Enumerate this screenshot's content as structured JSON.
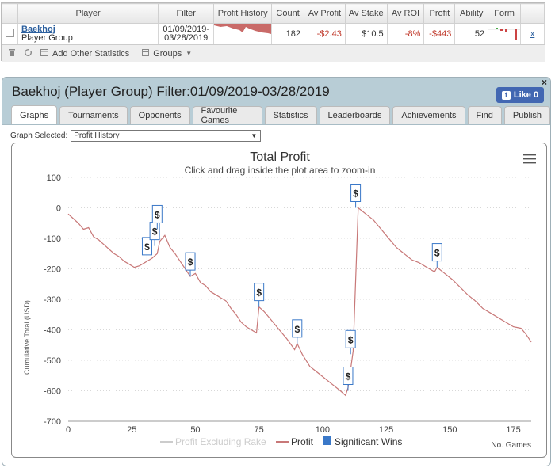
{
  "table": {
    "headers": [
      "Player",
      "Filter",
      "Profit History",
      "Count",
      "Av Profit",
      "Av Stake",
      "Av ROI",
      "Profit",
      "Ability",
      "Form"
    ],
    "row": {
      "player_name": "Baekhoj",
      "player_sub": "Player Group",
      "filter_line1": "01/09/2019-",
      "filter_line2": "03/28/2019",
      "count": "182",
      "av_profit": "-$2.43",
      "av_stake": "$10.5",
      "av_roi": "-8%",
      "profit": "-$443",
      "ability": "52",
      "remove": "x"
    }
  },
  "toolbar": {
    "add_stats": "Add Other Statistics",
    "groups": "Groups"
  },
  "panel": {
    "title": "Baekhoj (Player Group) Filter:01/09/2019-03/28/2019",
    "close": "×",
    "like_label": "Like 0",
    "tabs": [
      "Graphs",
      "Tournaments",
      "Opponents",
      "Favourite Games",
      "Statistics",
      "Leaderboards",
      "Achievements",
      "Find",
      "Publish"
    ],
    "graph_selected_label": "Graph Selected:",
    "graph_selected_value": "Profit History"
  },
  "chart_data": {
    "type": "line",
    "title": "Total Profit",
    "subtitle": "Click and drag inside the plot area to zoom-in",
    "ylabel": "Cumulative Total (USD)",
    "xlabel": "No. Games",
    "xlim": [
      0,
      182
    ],
    "ylim": [
      -700,
      100
    ],
    "xticks": [
      0,
      25,
      50,
      75,
      100,
      125,
      150,
      175
    ],
    "yticks": [
      100,
      0,
      -100,
      -200,
      -300,
      -400,
      -500,
      -600,
      -700
    ],
    "grid": "horizontal dotted",
    "legend": [
      "Profit Excluding Rake",
      "Profit",
      "Significant Wins"
    ],
    "legend_placement": "bottom",
    "colors": {
      "profit": "#c87878",
      "excl_rake": "#cccccc",
      "flag": "#3a78c8"
    },
    "series": [
      {
        "name": "Profit",
        "x": [
          0,
          2,
          4,
          6,
          8,
          10,
          12,
          14,
          16,
          18,
          20,
          22,
          24,
          26,
          28,
          30,
          31,
          33,
          35,
          36,
          38,
          40,
          42,
          44,
          46,
          48,
          50,
          52,
          54,
          56,
          58,
          60,
          62,
          64,
          66,
          68,
          70,
          72,
          74,
          75,
          77,
          80,
          83,
          86,
          89,
          90,
          92,
          95,
          98,
          101,
          104,
          107,
          109,
          110,
          112,
          114,
          117,
          120,
          123,
          126,
          129,
          132,
          135,
          138,
          141,
          144,
          145,
          148,
          151,
          154,
          157,
          160,
          163,
          166,
          169,
          172,
          175,
          178,
          180,
          182
        ],
        "values": [
          -20,
          -35,
          -50,
          -70,
          -65,
          -95,
          -105,
          -120,
          -135,
          -150,
          -160,
          -175,
          -185,
          -195,
          -190,
          -180,
          -175,
          -165,
          -150,
          -110,
          -90,
          -130,
          -150,
          -175,
          -200,
          -225,
          -215,
          -245,
          -255,
          -275,
          -285,
          -295,
          -305,
          -330,
          -350,
          -375,
          -390,
          -400,
          -410,
          -325,
          -340,
          -370,
          -400,
          -430,
          -465,
          -445,
          -480,
          -520,
          -540,
          -560,
          -580,
          -600,
          -615,
          -590,
          -470,
          0,
          -20,
          -40,
          -70,
          -100,
          -130,
          -150,
          -170,
          -180,
          -195,
          -210,
          -195,
          -215,
          -235,
          -260,
          -285,
          -305,
          -330,
          -345,
          -360,
          -375,
          -390,
          -395,
          -415,
          -440
        ]
      }
    ],
    "significant_wins": [
      {
        "x": 31,
        "y": -175
      },
      {
        "x": 34,
        "y": -125
      },
      {
        "x": 35,
        "y": -70
      },
      {
        "x": 48,
        "y": -225
      },
      {
        "x": 75,
        "y": -325
      },
      {
        "x": 90,
        "y": -445
      },
      {
        "x": 110,
        "y": -600
      },
      {
        "x": 111,
        "y": -480
      },
      {
        "x": 113,
        "y": 0
      },
      {
        "x": 145,
        "y": -195
      }
    ]
  }
}
